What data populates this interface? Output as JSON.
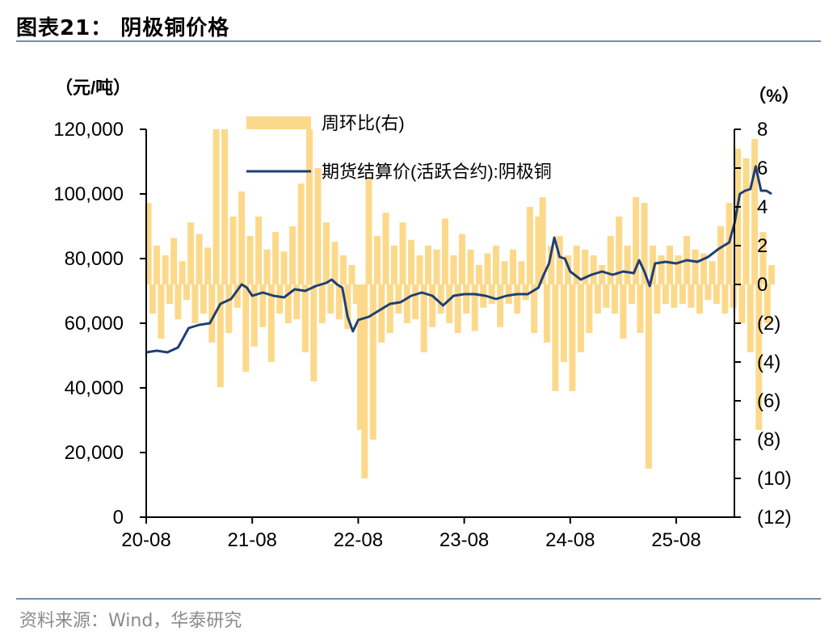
{
  "header": {
    "title": "图表21：  阴极铜价格"
  },
  "footer": {
    "source": "资料来源：Wind，华泰研究"
  },
  "chart_data": {
    "type": "bar+line",
    "title": "",
    "left_unit": "（元/吨）",
    "right_unit": "（%）",
    "left_axis": {
      "min": 0,
      "max": 120000,
      "ticks": [
        "0",
        "20,000",
        "40,000",
        "60,000",
        "80,000",
        "100,000",
        "120,000"
      ]
    },
    "right_axis": {
      "min": -12,
      "max": 8,
      "ticks": [
        "(12)",
        "(10)",
        "(8)",
        "(6)",
        "(4)",
        "(2)",
        "0",
        "2",
        "4",
        "6",
        "8"
      ]
    },
    "x_axis": {
      "categories": [
        "20-08",
        "21-08",
        "22-08",
        "23-08",
        "24-08",
        "25-08"
      ]
    },
    "legend": [
      {
        "name": "周环比(右)",
        "kind": "bar",
        "color": "#fcd98a"
      },
      {
        "name": "期货结算价(活跃合约):阴极铜",
        "kind": "line",
        "color": "#1f3f74"
      }
    ],
    "series": [
      {
        "name": "期货结算价(活跃合约):阴极铜",
        "axis": "left",
        "points": [
          [
            2020.6,
            51000
          ],
          [
            2020.7,
            51500
          ],
          [
            2020.8,
            51000
          ],
          [
            2020.9,
            52500
          ],
          [
            2021.0,
            58500
          ],
          [
            2021.1,
            59500
          ],
          [
            2021.2,
            60000
          ],
          [
            2021.3,
            66000
          ],
          [
            2021.4,
            67500
          ],
          [
            2021.5,
            72000
          ],
          [
            2021.55,
            71000
          ],
          [
            2021.6,
            68500
          ],
          [
            2021.7,
            69500
          ],
          [
            2021.8,
            68500
          ],
          [
            2021.9,
            68000
          ],
          [
            2022.0,
            70500
          ],
          [
            2022.1,
            70000
          ],
          [
            2022.2,
            71500
          ],
          [
            2022.3,
            72500
          ],
          [
            2022.35,
            73500
          ],
          [
            2022.4,
            72000
          ],
          [
            2022.45,
            71000
          ],
          [
            2022.5,
            62000
          ],
          [
            2022.55,
            57500
          ],
          [
            2022.6,
            61000
          ],
          [
            2022.7,
            62000
          ],
          [
            2022.8,
            64000
          ],
          [
            2022.9,
            66000
          ],
          [
            2023.0,
            66500
          ],
          [
            2023.1,
            68500
          ],
          [
            2023.2,
            69500
          ],
          [
            2023.3,
            68500
          ],
          [
            2023.4,
            65500
          ],
          [
            2023.5,
            68500
          ],
          [
            2023.6,
            69000
          ],
          [
            2023.7,
            69000
          ],
          [
            2023.8,
            68500
          ],
          [
            2023.9,
            67500
          ],
          [
            2024.0,
            68500
          ],
          [
            2024.1,
            69000
          ],
          [
            2024.2,
            69000
          ],
          [
            2024.3,
            71000
          ],
          [
            2024.35,
            75000
          ],
          [
            2024.4,
            78500
          ],
          [
            2024.45,
            86500
          ],
          [
            2024.5,
            80500
          ],
          [
            2024.55,
            80000
          ],
          [
            2024.6,
            76000
          ],
          [
            2024.7,
            73500
          ],
          [
            2024.8,
            75000
          ],
          [
            2024.9,
            76000
          ],
          [
            2025.0,
            75000
          ],
          [
            2025.1,
            76000
          ],
          [
            2025.2,
            75500
          ],
          [
            2025.25,
            79500
          ],
          [
            2025.3,
            76000
          ],
          [
            2025.35,
            71500
          ],
          [
            2025.4,
            78500
          ],
          [
            2025.5,
            79000
          ],
          [
            2025.6,
            78500
          ],
          [
            2025.7,
            79500
          ],
          [
            2025.8,
            79000
          ],
          [
            2025.9,
            80500
          ],
          [
            2026.0,
            83000
          ],
          [
            2026.1,
            85000
          ],
          [
            2026.15,
            91000
          ],
          [
            2026.2,
            100000
          ],
          [
            2026.25,
            101000
          ],
          [
            2026.3,
            101500
          ],
          [
            2026.35,
            108500
          ],
          [
            2026.4,
            101000
          ],
          [
            2026.45,
            101000
          ],
          [
            2026.5,
            100000
          ]
        ]
      },
      {
        "name": "周环比(右)",
        "axis": "right",
        "points": [
          [
            2020.62,
            4.2
          ],
          [
            2020.66,
            -1.5
          ],
          [
            2020.7,
            2.0
          ],
          [
            2020.74,
            -2.8
          ],
          [
            2020.78,
            1.5
          ],
          [
            2020.82,
            -1.0
          ],
          [
            2020.86,
            2.4
          ],
          [
            2020.9,
            -1.8
          ],
          [
            2020.94,
            1.2
          ],
          [
            2020.98,
            -0.8
          ],
          [
            2021.02,
            3.2
          ],
          [
            2021.06,
            -2.0
          ],
          [
            2021.1,
            2.6
          ],
          [
            2021.14,
            -1.5
          ],
          [
            2021.18,
            1.9
          ],
          [
            2021.22,
            -3.0
          ],
          [
            2021.26,
            8.0
          ],
          [
            2021.3,
            -5.3
          ],
          [
            2021.34,
            8.0
          ],
          [
            2021.38,
            -2.5
          ],
          [
            2021.42,
            3.5
          ],
          [
            2021.46,
            -1.2
          ],
          [
            2021.5,
            4.8
          ],
          [
            2021.54,
            -4.5
          ],
          [
            2021.58,
            2.5
          ],
          [
            2021.62,
            -3.2
          ],
          [
            2021.66,
            3.5
          ],
          [
            2021.7,
            -2.2
          ],
          [
            2021.74,
            1.8
          ],
          [
            2021.78,
            -4.0
          ],
          [
            2021.82,
            2.7
          ],
          [
            2021.86,
            -1.5
          ],
          [
            2021.9,
            1.7
          ],
          [
            2021.94,
            -2.0
          ],
          [
            2021.98,
            3.0
          ],
          [
            2022.02,
            -1.8
          ],
          [
            2022.06,
            5.2
          ],
          [
            2022.1,
            -3.5
          ],
          [
            2022.14,
            8.0
          ],
          [
            2022.18,
            -5.0
          ],
          [
            2022.22,
            6.0
          ],
          [
            2022.26,
            -2.0
          ],
          [
            2022.3,
            3.2
          ],
          [
            2022.34,
            -1.5
          ],
          [
            2022.38,
            2.2
          ],
          [
            2022.42,
            -1.8
          ],
          [
            2022.46,
            1.5
          ],
          [
            2022.5,
            -2.3
          ],
          [
            2022.54,
            1.0
          ],
          [
            2022.58,
            -1.0
          ],
          [
            2022.62,
            -7.5
          ],
          [
            2022.66,
            -10.0
          ],
          [
            2022.7,
            5.5
          ],
          [
            2022.74,
            -8.0
          ],
          [
            2022.78,
            2.5
          ],
          [
            2022.82,
            -3.0
          ],
          [
            2022.86,
            3.7
          ],
          [
            2022.9,
            -2.5
          ],
          [
            2022.94,
            2.0
          ],
          [
            2022.98,
            -1.5
          ],
          [
            2023.02,
            3.2
          ],
          [
            2023.06,
            -2.0
          ],
          [
            2023.1,
            2.3
          ],
          [
            2023.14,
            -1.8
          ],
          [
            2023.18,
            1.5
          ],
          [
            2023.22,
            -3.5
          ],
          [
            2023.26,
            2.0
          ],
          [
            2023.3,
            -2.2
          ],
          [
            2023.34,
            1.8
          ],
          [
            2023.38,
            -1.5
          ],
          [
            2023.42,
            3.4
          ],
          [
            2023.46,
            -2.0
          ],
          [
            2023.5,
            1.5
          ],
          [
            2023.54,
            -2.5
          ],
          [
            2023.58,
            2.6
          ],
          [
            2023.62,
            -1.5
          ],
          [
            2023.66,
            1.8
          ],
          [
            2023.7,
            -2.4
          ],
          [
            2023.74,
            1.0
          ],
          [
            2023.78,
            -1.2
          ],
          [
            2023.82,
            1.6
          ],
          [
            2023.86,
            -1.0
          ],
          [
            2023.9,
            2.0
          ],
          [
            2023.94,
            -2.2
          ],
          [
            2023.98,
            1.2
          ],
          [
            2024.02,
            -1.0
          ],
          [
            2024.06,
            1.8
          ],
          [
            2024.1,
            -1.5
          ],
          [
            2024.14,
            1.2
          ],
          [
            2024.18,
            -0.8
          ],
          [
            2024.22,
            4.0
          ],
          [
            2024.26,
            -2.5
          ],
          [
            2024.3,
            3.5
          ],
          [
            2024.34,
            4.5
          ],
          [
            2024.38,
            -3.0
          ],
          [
            2024.42,
            2.0
          ],
          [
            2024.46,
            -5.5
          ],
          [
            2024.5,
            2.5
          ],
          [
            2024.54,
            -4.0
          ],
          [
            2024.58,
            1.5
          ],
          [
            2024.62,
            -5.5
          ],
          [
            2024.66,
            2.0
          ],
          [
            2024.7,
            -3.5
          ],
          [
            2024.74,
            1.8
          ],
          [
            2024.78,
            -2.5
          ],
          [
            2024.82,
            1.5
          ],
          [
            2024.86,
            -1.5
          ],
          [
            2024.9,
            1.0
          ],
          [
            2024.94,
            -1.2
          ],
          [
            2024.98,
            2.5
          ],
          [
            2025.02,
            -1.5
          ],
          [
            2025.06,
            3.5
          ],
          [
            2025.1,
            -2.8
          ],
          [
            2025.14,
            2.0
          ],
          [
            2025.18,
            -1.0
          ],
          [
            2025.22,
            4.5
          ],
          [
            2025.26,
            -2.5
          ],
          [
            2025.3,
            4.2
          ],
          [
            2025.34,
            -9.5
          ],
          [
            2025.38,
            2.0
          ],
          [
            2025.42,
            -1.5
          ],
          [
            2025.46,
            1.5
          ],
          [
            2025.5,
            -1.0
          ],
          [
            2025.54,
            2.0
          ],
          [
            2025.58,
            -1.2
          ],
          [
            2025.62,
            1.5
          ],
          [
            2025.66,
            -1.0
          ],
          [
            2025.7,
            2.5
          ],
          [
            2025.74,
            -1.2
          ],
          [
            2025.78,
            1.8
          ],
          [
            2025.82,
            -1.5
          ],
          [
            2025.86,
            1.6
          ],
          [
            2025.9,
            -0.8
          ],
          [
            2025.94,
            1.2
          ],
          [
            2025.98,
            -1.0
          ],
          [
            2026.02,
            3.0
          ],
          [
            2026.06,
            -1.5
          ],
          [
            2026.1,
            4.2
          ],
          [
            2026.14,
            -1.2
          ],
          [
            2026.18,
            7.0
          ],
          [
            2026.22,
            -2.0
          ],
          [
            2026.26,
            6.5
          ],
          [
            2026.3,
            -3.5
          ],
          [
            2026.34,
            7.5
          ],
          [
            2026.38,
            -7.5
          ],
          [
            2026.42,
            2.7
          ],
          [
            2026.46,
            -2.0
          ],
          [
            2026.5,
            1.0
          ]
        ]
      }
    ],
    "grid": false,
    "legend_placement": "top-center"
  }
}
